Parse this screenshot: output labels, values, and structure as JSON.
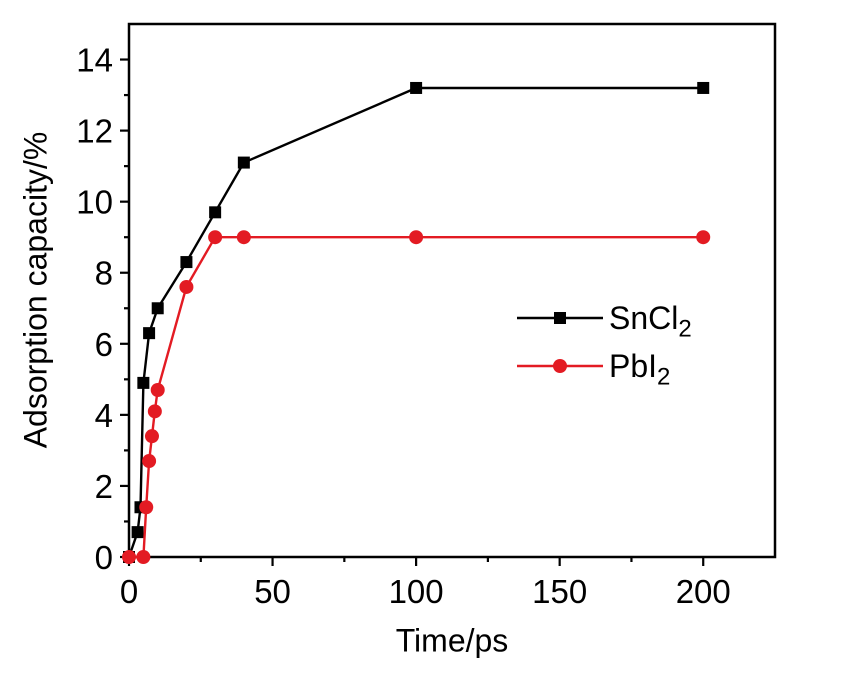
{
  "figure": {
    "background": "#ffffff",
    "frame_color": "#000000"
  },
  "chart_data": {
    "type": "line",
    "title": "",
    "xlabel": "Time/ps",
    "ylabel": "Adsorption capacity/%",
    "xlim": [
      0,
      225
    ],
    "ylim": [
      0,
      15
    ],
    "x_major_ticks": [
      0,
      50,
      100,
      150,
      200
    ],
    "x_minor_ticks": [
      25,
      75,
      125,
      175
    ],
    "y_major_ticks": [
      0,
      2,
      4,
      6,
      8,
      10,
      12,
      14
    ],
    "y_minor_ticks": [
      1,
      3,
      5,
      7,
      9,
      11,
      13
    ],
    "grid": false,
    "legend_position": "right-center",
    "series": [
      {
        "name": "SnCl2",
        "label_main": "SnCl",
        "label_sub": "2",
        "color": "#000000",
        "marker": "square",
        "points": [
          [
            0,
            0
          ],
          [
            3,
            0.7
          ],
          [
            4,
            1.4
          ],
          [
            5,
            4.9
          ],
          [
            7,
            6.3
          ],
          [
            10,
            7.0
          ],
          [
            20,
            8.3
          ],
          [
            30,
            9.7
          ],
          [
            40,
            11.1
          ],
          [
            100,
            13.2
          ],
          [
            200,
            13.2
          ]
        ]
      },
      {
        "name": "PbI2",
        "label_main": "PbI",
        "label_sub": "2",
        "color": "#e31b23",
        "marker": "circle",
        "points": [
          [
            0,
            0
          ],
          [
            5,
            0
          ],
          [
            6,
            1.4
          ],
          [
            7,
            2.7
          ],
          [
            8,
            3.4
          ],
          [
            9,
            4.1
          ],
          [
            10,
            4.7
          ],
          [
            20,
            7.6
          ],
          [
            30,
            9.0
          ],
          [
            40,
            9.0
          ],
          [
            100,
            9.0
          ],
          [
            200,
            9.0
          ]
        ]
      }
    ]
  }
}
